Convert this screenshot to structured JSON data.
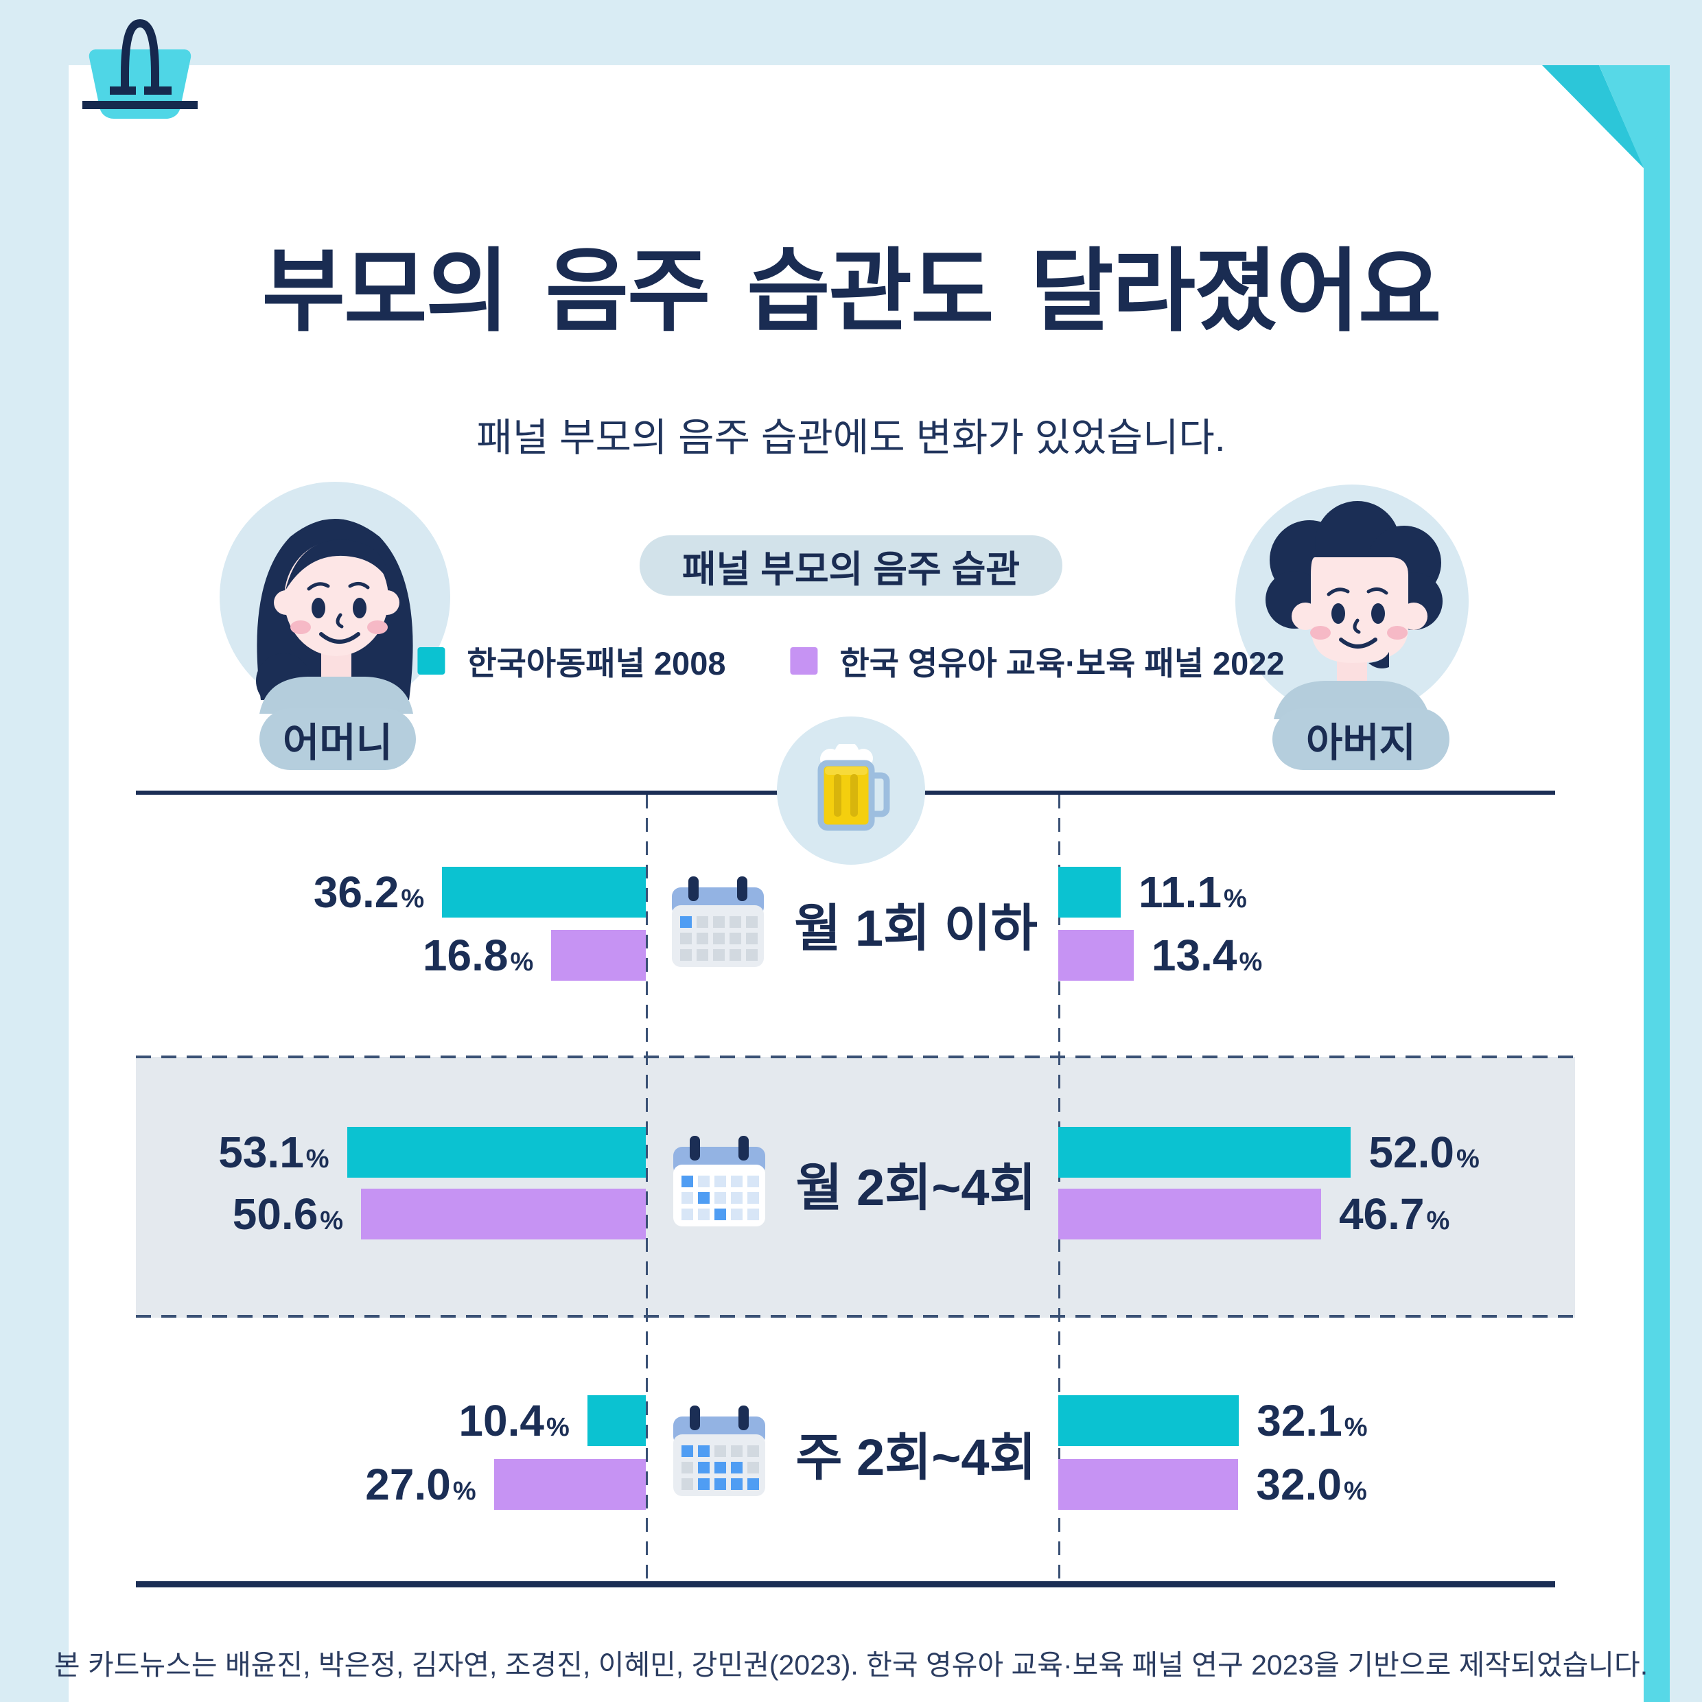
{
  "header": {
    "title": "부모의 음주 습관도 달라졌어요",
    "subtitle": "패널 부모의 음주 습관에도 변화가 있었습니다.",
    "badge": "패널 부모의 음주 습관"
  },
  "people": {
    "mother": "어머니",
    "father": "아버지"
  },
  "legend": [
    {
      "label": "한국아동패널 2008",
      "color": "#0bc2d1"
    },
    {
      "label": "한국 영유아 교육·보육 패널 2022",
      "color": "#c693f3"
    }
  ],
  "unit": "%",
  "rows": [
    {
      "label": "월 1회 이하",
      "icon": "calendar-few-icon",
      "mother": {
        "v2008": 36.2,
        "l2008": "36.2",
        "v2022": 16.8,
        "l2022": "16.8"
      },
      "father": {
        "v2008": 11.1,
        "l2008": "11.1",
        "v2022": 13.4,
        "l2022": "13.4"
      }
    },
    {
      "label": "월 2회~4회",
      "icon": "calendar-some-icon",
      "highlighted": true,
      "mother": {
        "v2008": 53.1,
        "l2008": "53.1",
        "v2022": 50.6,
        "l2022": "50.6"
      },
      "father": {
        "v2008": 52.0,
        "l2008": "52.0",
        "v2022": 46.7,
        "l2022": "46.7"
      }
    },
    {
      "label": "주 2회~4회",
      "icon": "calendar-many-icon",
      "mother": {
        "v2008": 10.4,
        "l2008": "10.4",
        "v2022": 27.0,
        "l2022": "27.0"
      },
      "father": {
        "v2008": 32.1,
        "l2008": "32.1",
        "v2022": 32.0,
        "l2022": "32.0"
      }
    }
  ],
  "footer": "본 카드뉴스는 배윤진, 박은정, 김자연, 조경진, 이혜민, 강민권(2023). 한국 영유아 교육·보육 패널 연구 2023을 기반으로 제작되었습니다.",
  "theme": {
    "navy": "#1b2e55",
    "teal_bar": "#0bc2d1",
    "purple_bar": "#c693f3",
    "page_bg": "#d9ecf4",
    "card_bg": "#ffffff",
    "ribbon_teal": "#57d8e7",
    "fold_teal": "#2cc6d9",
    "highlight_band": "#e4e9ee"
  },
  "chart_data": {
    "type": "bar",
    "orientation": "horizontal",
    "title": "패널 부모의 음주 습관",
    "unit": "%",
    "categories": [
      "월 1회 이하",
      "월 2회~4회",
      "주 2회~4회"
    ],
    "groups": [
      "어머니",
      "아버지"
    ],
    "series": [
      {
        "name": "한국아동패널 2008",
        "color": "#0bc2d1",
        "mother": [
          36.2,
          53.1,
          10.4
        ],
        "father": [
          11.1,
          52.0,
          32.1
        ]
      },
      {
        "name": "한국 영유아 교육·보육 패널 2022",
        "color": "#c693f3",
        "mother": [
          16.8,
          50.6,
          27.0
        ],
        "father": [
          13.4,
          46.7,
          32.0
        ]
      }
    ],
    "legend_position": "top-center",
    "grid": false,
    "xlim": [
      0,
      65
    ]
  }
}
